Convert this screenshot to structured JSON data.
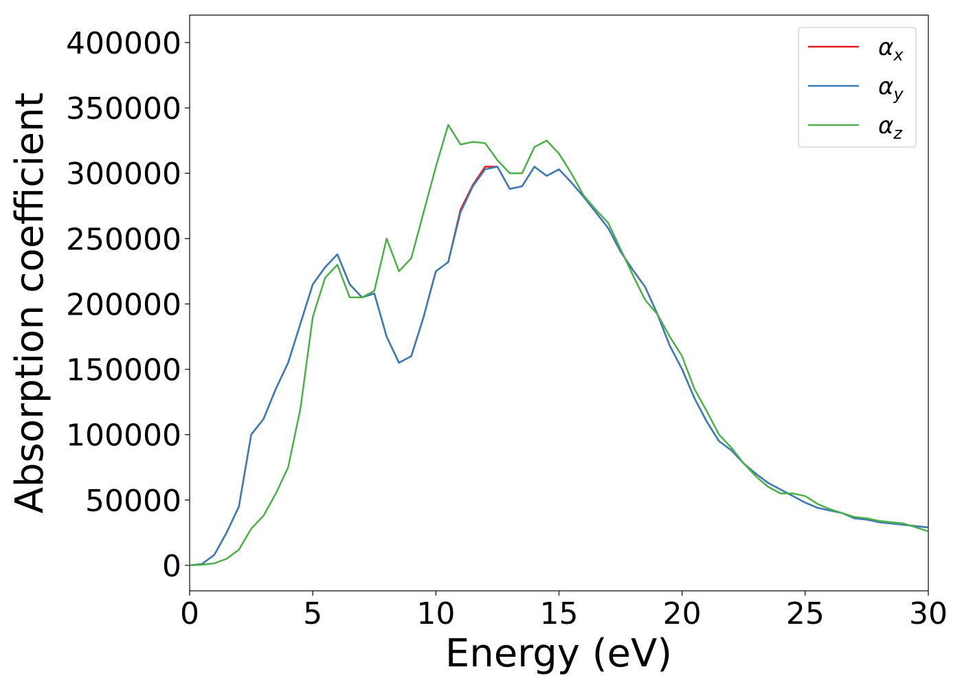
{
  "chart_data": {
    "type": "line",
    "xlabel": "Energy (eV)",
    "ylabel": "Absorption coefficient",
    "x": [
      0,
      0.5,
      1,
      1.5,
      2,
      2.5,
      3,
      3.5,
      4,
      4.5,
      5,
      5.5,
      6,
      6.5,
      7,
      7.5,
      8,
      8.5,
      9,
      9.5,
      10,
      10.5,
      11,
      11.5,
      12,
      12.5,
      13,
      13.5,
      14,
      14.5,
      15,
      15.5,
      16,
      16.5,
      17,
      17.5,
      18,
      18.5,
      19,
      19.5,
      20,
      20.5,
      21,
      21.5,
      22,
      22.5,
      23,
      23.5,
      24,
      24.5,
      25,
      25.5,
      26,
      26.5,
      27,
      27.5,
      28,
      28.5,
      29,
      29.5,
      30
    ],
    "series": [
      {
        "name": "α_x",
        "color": "#e41a1c",
        "values": [
          0,
          1000,
          8000,
          25000,
          45000,
          100000,
          112000,
          135000,
          155000,
          185000,
          215000,
          228000,
          238000,
          215000,
          205000,
          208000,
          175000,
          155000,
          160000,
          190000,
          225000,
          232000,
          272000,
          291000,
          305000,
          305000,
          288000,
          290000,
          305000,
          298000,
          303000,
          293000,
          282000,
          270000,
          258000,
          240000,
          226000,
          213000,
          192000,
          168000,
          150000,
          128000,
          110000,
          95000,
          88000,
          78000,
          70000,
          63000,
          58000,
          53000,
          48000,
          44000,
          42000,
          40000,
          36000,
          35000,
          33000,
          32000,
          31000,
          30000,
          29000
        ]
      },
      {
        "name": "α_y",
        "color": "#377eb8",
        "values": [
          0,
          1000,
          8000,
          25000,
          45000,
          100000,
          112000,
          135000,
          155000,
          185000,
          215000,
          228000,
          238000,
          215000,
          205000,
          208000,
          175000,
          155000,
          160000,
          190000,
          225000,
          232000,
          270000,
          290000,
          303000,
          305000,
          288000,
          290000,
          305000,
          298000,
          303000,
          293000,
          282000,
          270000,
          258000,
          240000,
          226000,
          213000,
          192000,
          168000,
          150000,
          128000,
          110000,
          95000,
          88000,
          78000,
          70000,
          63000,
          58000,
          53000,
          48000,
          44000,
          42000,
          40000,
          36000,
          35000,
          33000,
          32000,
          31000,
          30000,
          29000
        ]
      },
      {
        "name": "α_z",
        "color": "#4daf4a",
        "values": [
          0,
          500,
          1500,
          5000,
          12000,
          28000,
          38000,
          55000,
          75000,
          120000,
          190000,
          220000,
          230000,
          205000,
          205000,
          210000,
          250000,
          225000,
          235000,
          270000,
          305000,
          337000,
          322000,
          324000,
          323000,
          310000,
          300000,
          300000,
          320000,
          325000,
          315000,
          300000,
          283000,
          272000,
          262000,
          242000,
          222000,
          203000,
          192000,
          175000,
          160000,
          135000,
          118000,
          100000,
          90000,
          78000,
          68000,
          60000,
          55000,
          55000,
          53000,
          47000,
          43000,
          40000,
          37000,
          36000,
          34000,
          33000,
          32000,
          29000,
          26000
        ]
      }
    ],
    "xlim": [
      0,
      30
    ],
    "xticks": [
      0,
      5,
      10,
      15,
      20,
      25,
      30
    ],
    "ylim": [
      -19500,
      421000
    ],
    "yticks": [
      0,
      50000,
      100000,
      150000,
      200000,
      250000,
      300000,
      350000,
      400000
    ],
    "grid": false,
    "legend": "upper right"
  }
}
